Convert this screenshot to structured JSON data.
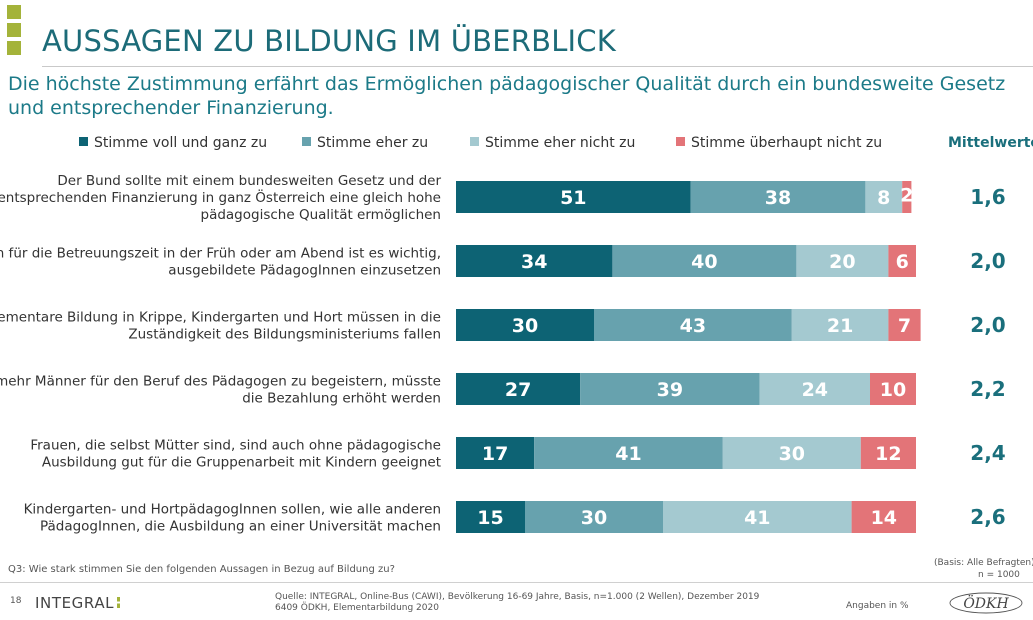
{
  "header": {
    "title": "AUSSAGEN ZU BILDUNG IM ÜBERBLICK",
    "subtitle": "Die höchste Zustimmung erfährt das Ermöglichen pädagogischer Qualität durch ein bundesweite Gesetz und entsprechender Finanzierung."
  },
  "colors": {
    "accent": "#a4b33a",
    "title": "#1c6b78",
    "mean": "#1a6f7c"
  },
  "chart_data": {
    "type": "bar",
    "orientation": "horizontal",
    "stacked": true,
    "xlim": [
      0,
      100
    ],
    "legend": [
      {
        "name": "Stimme voll und ganz zu",
        "color": "#0d6374"
      },
      {
        "name": "Stimme eher zu",
        "color": "#67a2ae"
      },
      {
        "name": "Stimme eher nicht zu",
        "color": "#a4c9d0"
      },
      {
        "name": "Stimme überhaupt nicht zu",
        "color": "#e37478"
      }
    ],
    "mean_label": "Mittelwerte",
    "categories": [
      [
        "Der Bund sollte mit einem bundesweiten Gesetz und der",
        "entsprechenden Finanzierung in ganz Österreich eine gleich hohe",
        "pädagogische Qualität ermöglichen"
      ],
      [
        "Auch für die Betreuungszeit in der Früh oder am Abend ist es wichtig,",
        "ausgebildete PädagogInnen einzusetzen"
      ],
      [
        "Elementare Bildung in Krippe, Kindergarten und Hort müssen in die",
        "Zuständigkeit des Bildungsministeriums fallen"
      ],
      [
        "Um mehr Männer für den Beruf des Pädagogen zu begeistern, müsste",
        "die Bezahlung erhöht werden"
      ],
      [
        "Frauen, die selbst Mütter sind, sind auch ohne pädagogische",
        "Ausbildung gut für die Gruppenarbeit mit Kindern geeignet"
      ],
      [
        "Kindergarten- und HortpädagogInnen sollen, wie alle anderen",
        "PädagogInnen, die Ausbildung an einer Universität machen"
      ]
    ],
    "series": [
      {
        "name": "Stimme voll und ganz zu",
        "values": [
          51,
          34,
          30,
          27,
          17,
          15
        ]
      },
      {
        "name": "Stimme eher zu",
        "values": [
          38,
          40,
          43,
          39,
          41,
          30
        ]
      },
      {
        "name": "Stimme eher nicht zu",
        "values": [
          8,
          20,
          21,
          24,
          30,
          41
        ]
      },
      {
        "name": "Stimme überhaupt nicht zu",
        "values": [
          2,
          6,
          7,
          10,
          12,
          14
        ]
      }
    ],
    "means": [
      "1,6",
      "2,0",
      "2,0",
      "2,2",
      "2,4",
      "2,6"
    ]
  },
  "footer": {
    "question": "Q3: Wie stark stimmen Sie den folgenden Aussagen in Bezug auf Bildung zu?",
    "basis": "(Basis: Alle Befragten)",
    "n": "n =      1000",
    "page": "18",
    "logo": "INTEGRAL",
    "source_line1": "Quelle: INTEGRAL, Online-Bus (CAWI), Bevölkerung 16-69 Jahre, Basis, n=1.000 (2 Wellen), Dezember 2019",
    "source_line2": "6409 ÖDKH, Elementarbildung 2020",
    "units": "Angaben in %",
    "brand": "ÖDKH"
  }
}
